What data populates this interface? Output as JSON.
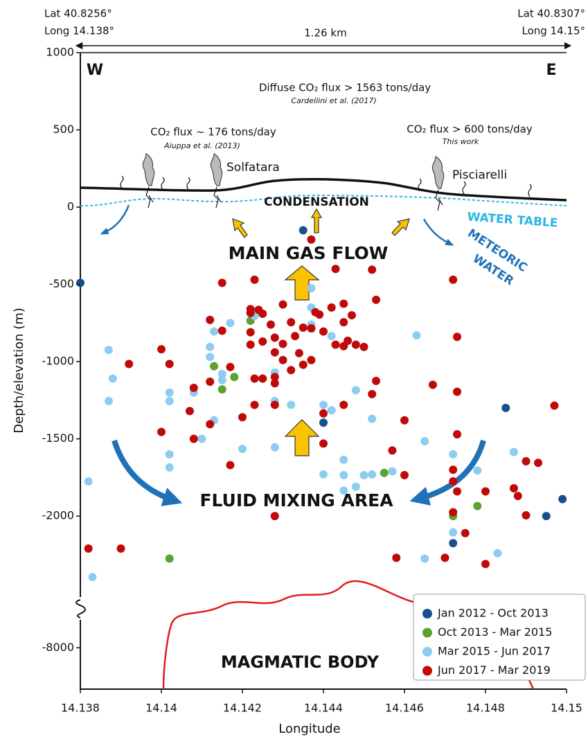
{
  "chart_data": {
    "type": "scatter",
    "x_label": "Longitude",
    "y_label": "Depth/elevation (m)",
    "xlim": [
      14.138,
      14.15
    ],
    "xticks": [
      14.138,
      14.14,
      14.142,
      14.144,
      14.146,
      14.148,
      14.15
    ],
    "ylim": [
      -2600,
      1000
    ],
    "yticks": [
      1000,
      500,
      0,
      -500,
      -1000,
      -1500,
      -2000
    ],
    "ylim_lower": [
      -8270,
      -7750
    ],
    "yticks_lower": [
      -8000
    ],
    "legend": "lower right",
    "annotations": {
      "lat_w": "Lat 40.8256°",
      "long_w": "Long 14.138°",
      "lat_e": "Lat 40.8307°",
      "long_e": "Long 14.15°",
      "distance": "1.26 km",
      "west": "W",
      "east": "E",
      "diffuse_flux": "Diffuse CO₂ flux > 1563 tons/day",
      "diffuse_ref": "Cardellini et al. (2017)",
      "solfatara_flux": "CO₂ flux ~ 176 tons/day",
      "solfatara_ref": "Aiuppa et al. (2013)",
      "pisciarelli_flux": "CO₂ flux > 600 tons/day",
      "pisciarelli_ref": "This work",
      "solfatara": "Solfatara",
      "pisciarelli": "Pisciarelli",
      "condensation": "CONDENSATION",
      "water_table": "WATER TABLE",
      "meteoric_water": [
        "METEORIC",
        "WATER"
      ],
      "main_gas_flow": "MAIN GAS FLOW",
      "fluid_mixing": "FLUID MIXING AREA",
      "magmatic_body": "MAGMATIC BODY"
    },
    "series": [
      {
        "name": "Jan 2012 - Oct 2013",
        "color": "#18508e",
        "x": [
          14.138,
          14.1435,
          14.144,
          14.1485,
          14.1472,
          14.1495,
          14.1499
        ],
        "values": [
          -490,
          -150,
          -1395,
          -1300,
          -2175,
          -2000,
          -1890
        ]
      },
      {
        "name": "Oct 2013 - Mar 2015",
        "color": "#5ca22e",
        "x": [
          14.1413,
          14.1418,
          14.1415,
          14.1422,
          14.1402,
          14.1455,
          14.1472,
          14.1478
        ],
        "values": [
          -1030,
          -1100,
          -1180,
          -735,
          -2275,
          -1720,
          -2000,
          -1935
        ]
      },
      {
        "name": "Mar 2015 - Jun 2017",
        "color": "#8fccf1",
        "x": [
          14.1382,
          14.1383,
          14.1387,
          14.1388,
          14.1387,
          14.1402,
          14.1402,
          14.1402,
          14.1402,
          14.1408,
          14.141,
          14.1412,
          14.1412,
          14.1413,
          14.1413,
          14.1415,
          14.1415,
          14.1417,
          14.142,
          14.1423,
          14.1428,
          14.1428,
          14.1428,
          14.1432,
          14.1437,
          14.1437,
          14.1437,
          14.144,
          14.144,
          14.1442,
          14.1442,
          14.1445,
          14.1445,
          14.1445,
          14.1448,
          14.1448,
          14.145,
          14.1452,
          14.1452,
          14.1457,
          14.1463,
          14.1465,
          14.1465,
          14.1472,
          14.1472,
          14.1478,
          14.1483,
          14.1487
        ],
        "values": [
          -1775,
          -2395,
          -925,
          -1110,
          -1255,
          -1200,
          -1255,
          -1600,
          -1685,
          -1200,
          -1500,
          -905,
          -970,
          -805,
          -1380,
          -1080,
          -1120,
          -750,
          -1565,
          -705,
          -1070,
          -1255,
          -1555,
          -1280,
          -650,
          -760,
          -525,
          -1280,
          -1730,
          -835,
          -1315,
          -1835,
          -1635,
          -1735,
          -1185,
          -1810,
          -1735,
          -1370,
          -1730,
          -1710,
          -830,
          -2275,
          -1515,
          -1600,
          -2105,
          -1705,
          -2240,
          -1585
        ]
      },
      {
        "name": "Jun 2017 - Mar 2019",
        "color": "#c00a0a",
        "x": [
          14.1382,
          14.139,
          14.1392,
          14.14,
          14.14,
          14.1402,
          14.1407,
          14.1408,
          14.1408,
          14.1412,
          14.1412,
          14.1412,
          14.1415,
          14.1415,
          14.1417,
          14.1417,
          14.142,
          14.1422,
          14.1422,
          14.1422,
          14.1422,
          14.1423,
          14.1423,
          14.1423,
          14.1424,
          14.1425,
          14.1425,
          14.1425,
          14.1427,
          14.1428,
          14.1428,
          14.1428,
          14.1428,
          14.1428,
          14.1428,
          14.143,
          14.143,
          14.143,
          14.1432,
          14.1432,
          14.1433,
          14.1434,
          14.1435,
          14.1435,
          14.1437,
          14.1437,
          14.1437,
          14.1438,
          14.1439,
          14.144,
          14.144,
          14.144,
          14.1442,
          14.1443,
          14.1443,
          14.1445,
          14.1445,
          14.1445,
          14.1445,
          14.1446,
          14.1447,
          14.1448,
          14.145,
          14.1452,
          14.1452,
          14.1453,
          14.1453,
          14.1457,
          14.1458,
          14.146,
          14.146,
          14.1467,
          14.147,
          14.1472,
          14.1472,
          14.1472,
          14.1473,
          14.1472,
          14.1473,
          14.1473,
          14.1473,
          14.1475,
          14.148,
          14.148,
          14.1487,
          14.1488,
          14.149,
          14.149,
          14.1493,
          14.1497
        ],
        "values": [
          -2210,
          -2210,
          -1015,
          -920,
          -1455,
          -1015,
          -1320,
          -1500,
          -1170,
          -730,
          -1130,
          -1405,
          -490,
          -800,
          -1035,
          -1670,
          -1360,
          -685,
          -810,
          -890,
          -660,
          -470,
          -1110,
          -1280,
          -665,
          -870,
          -1110,
          -690,
          -760,
          -845,
          -940,
          -1140,
          -1100,
          -1280,
          -2000,
          -630,
          -990,
          -885,
          -745,
          -1055,
          -835,
          -945,
          -780,
          -1020,
          -785,
          -990,
          -210,
          -680,
          -695,
          -805,
          -1335,
          -1530,
          -650,
          -400,
          -890,
          -745,
          -900,
          -1280,
          -625,
          -865,
          -700,
          -890,
          -905,
          -405,
          -1210,
          -600,
          -1125,
          -1575,
          -2270,
          -1380,
          -1735,
          -1150,
          -2270,
          -470,
          -1775,
          -1700,
          -1195,
          -1975,
          -1840,
          -840,
          -1470,
          -2110,
          -1840,
          -2310,
          -1820,
          -1870,
          -1995,
          -1645,
          -1655,
          -1285
        ]
      }
    ]
  }
}
